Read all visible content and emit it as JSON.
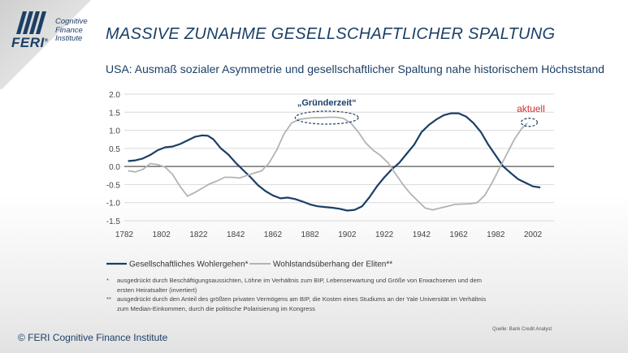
{
  "logo": {
    "brand": "FERI",
    "registered": "®",
    "sub_lines": [
      "Cognitive",
      "Finance",
      "Institute"
    ]
  },
  "header": {
    "title": "MASSIVE ZUNAHME GESELLSCHAFTLICHER SPALTUNG",
    "subtitle": "USA: Ausmaß sozialer Asymmetrie und gesellschaftlicher Spaltung nahe historischem Höchststand"
  },
  "chart_data": {
    "type": "line",
    "title": "",
    "xlabel": "",
    "ylabel": "",
    "xlim": [
      1782,
      2010
    ],
    "ylim": [
      -1.5,
      2.0
    ],
    "x_ticks": [
      1782,
      1802,
      1822,
      1842,
      1862,
      1882,
      1902,
      1922,
      1942,
      1962,
      1982,
      2002
    ],
    "x_tick_labels": [
      "1782",
      "1802",
      "1822",
      "1842",
      "1862",
      "1882",
      "1902",
      "1922",
      "1942",
      "1962",
      "1982",
      "2002"
    ],
    "y_ticks": [
      2.0,
      1.5,
      1.0,
      0.5,
      0.0,
      -0.5,
      -1.0,
      -1.5
    ],
    "y_tick_labels": [
      "2.0",
      "1.5",
      "1.0",
      "0.5",
      "0.0",
      "-0.5",
      "-1.0",
      "-1.5"
    ],
    "grid": "horizontal",
    "legend_position": "bottom",
    "series": [
      {
        "name": "Gesellschaftliches Wohlergehen*",
        "color": "#1b3f66",
        "points": [
          [
            1784,
            0.15
          ],
          [
            1788,
            0.17
          ],
          [
            1792,
            0.22
          ],
          [
            1796,
            0.32
          ],
          [
            1800,
            0.45
          ],
          [
            1804,
            0.53
          ],
          [
            1808,
            0.55
          ],
          [
            1812,
            0.62
          ],
          [
            1816,
            0.72
          ],
          [
            1820,
            0.82
          ],
          [
            1824,
            0.86
          ],
          [
            1827,
            0.85
          ],
          [
            1830,
            0.75
          ],
          [
            1834,
            0.5
          ],
          [
            1838,
            0.33
          ],
          [
            1842,
            0.1
          ],
          [
            1846,
            -0.1
          ],
          [
            1850,
            -0.3
          ],
          [
            1854,
            -0.52
          ],
          [
            1858,
            -0.68
          ],
          [
            1862,
            -0.8
          ],
          [
            1866,
            -0.88
          ],
          [
            1870,
            -0.86
          ],
          [
            1874,
            -0.9
          ],
          [
            1878,
            -0.97
          ],
          [
            1882,
            -1.05
          ],
          [
            1886,
            -1.1
          ],
          [
            1890,
            -1.12
          ],
          [
            1894,
            -1.14
          ],
          [
            1898,
            -1.17
          ],
          [
            1902,
            -1.22
          ],
          [
            1906,
            -1.2
          ],
          [
            1910,
            -1.1
          ],
          [
            1914,
            -0.85
          ],
          [
            1918,
            -0.55
          ],
          [
            1922,
            -0.3
          ],
          [
            1926,
            -0.08
          ],
          [
            1930,
            0.1
          ],
          [
            1934,
            0.35
          ],
          [
            1938,
            0.6
          ],
          [
            1942,
            0.95
          ],
          [
            1946,
            1.15
          ],
          [
            1950,
            1.3
          ],
          [
            1954,
            1.42
          ],
          [
            1958,
            1.47
          ],
          [
            1962,
            1.47
          ],
          [
            1966,
            1.38
          ],
          [
            1970,
            1.2
          ],
          [
            1974,
            0.95
          ],
          [
            1978,
            0.6
          ],
          [
            1982,
            0.3
          ],
          [
            1986,
            0.0
          ],
          [
            1990,
            -0.18
          ],
          [
            1994,
            -0.35
          ],
          [
            1998,
            -0.45
          ],
          [
            2002,
            -0.55
          ],
          [
            2006,
            -0.58
          ]
        ]
      },
      {
        "name": "Wohlstandsüberhang der Eliten**",
        "color": "#b3b3b3",
        "points": [
          [
            1784,
            -0.12
          ],
          [
            1788,
            -0.15
          ],
          [
            1792,
            -0.08
          ],
          [
            1796,
            0.08
          ],
          [
            1800,
            0.05
          ],
          [
            1804,
            -0.02
          ],
          [
            1808,
            -0.22
          ],
          [
            1812,
            -0.55
          ],
          [
            1816,
            -0.82
          ],
          [
            1820,
            -0.72
          ],
          [
            1824,
            -0.6
          ],
          [
            1828,
            -0.48
          ],
          [
            1832,
            -0.4
          ],
          [
            1836,
            -0.3
          ],
          [
            1840,
            -0.3
          ],
          [
            1844,
            -0.32
          ],
          [
            1848,
            -0.25
          ],
          [
            1852,
            -0.18
          ],
          [
            1856,
            -0.12
          ],
          [
            1860,
            0.1
          ],
          [
            1864,
            0.45
          ],
          [
            1868,
            0.9
          ],
          [
            1872,
            1.2
          ],
          [
            1876,
            1.3
          ],
          [
            1880,
            1.33
          ],
          [
            1884,
            1.35
          ],
          [
            1888,
            1.35
          ],
          [
            1892,
            1.36
          ],
          [
            1896,
            1.36
          ],
          [
            1900,
            1.33
          ],
          [
            1904,
            1.2
          ],
          [
            1908,
            0.95
          ],
          [
            1912,
            0.65
          ],
          [
            1916,
            0.45
          ],
          [
            1920,
            0.3
          ],
          [
            1924,
            0.1
          ],
          [
            1928,
            -0.2
          ],
          [
            1932,
            -0.5
          ],
          [
            1936,
            -0.75
          ],
          [
            1940,
            -0.95
          ],
          [
            1944,
            -1.15
          ],
          [
            1948,
            -1.2
          ],
          [
            1952,
            -1.15
          ],
          [
            1956,
            -1.1
          ],
          [
            1960,
            -1.05
          ],
          [
            1964,
            -1.04
          ],
          [
            1968,
            -1.03
          ],
          [
            1972,
            -1.0
          ],
          [
            1976,
            -0.8
          ],
          [
            1980,
            -0.45
          ],
          [
            1984,
            -0.05
          ],
          [
            1988,
            0.35
          ],
          [
            1992,
            0.75
          ],
          [
            1996,
            1.05
          ],
          [
            1999,
            1.2
          ]
        ]
      }
    ],
    "annotations": [
      {
        "text": "„Gründerzeit“",
        "x_range": [
          1874,
          1908
        ],
        "y": 1.35,
        "shape": "dashed-ellipse",
        "color": "#1b3f66"
      },
      {
        "text": "aktuell",
        "x": 2000,
        "y": 1.22,
        "shape": "dashed-ellipse",
        "color": "#d62b2b"
      }
    ]
  },
  "footnotes": [
    {
      "mark": "*",
      "lines": [
        "ausgedrückt durch Beschäftigungsaussichten, Löhne im Verhältnis zum BIP, Lebenserwartung und Größe von Erwachsenen und dem",
        "ersten Heiratsalter (invertiert)"
      ]
    },
    {
      "mark": "**",
      "lines": [
        "ausgedrückt durch den Anteil des größten privaten Vermögens am BIP, die Kosten eines Studiums an der Yale Universität im Verhältnis",
        "zum Median-Einkommen, durch die politische Polarisierung im Kongress"
      ]
    }
  ],
  "source": "Quelle: Bank Credit Analyst",
  "copyright": "© FERI Cognitive Finance Institute",
  "colors": {
    "brand": "#1b3f66",
    "accent": "#d62b2b",
    "grey_line": "#b3b3b3"
  }
}
